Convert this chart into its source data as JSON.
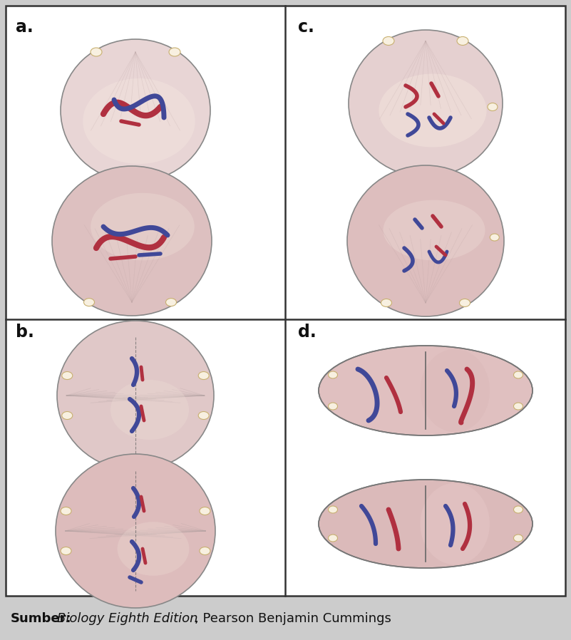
{
  "bg_color": "#cccccc",
  "panel_bg": "#f0f0f0",
  "cell_light": "#e8d0d0",
  "cell_medium": "#ddbcbc",
  "cell_dark": "#ccaaaa",
  "border_color": "#444444",
  "labels": [
    "a.",
    "b.",
    "c.",
    "d."
  ],
  "footer_bold": "Sumber:",
  "footer_italic": "Biology Eighth Edition",
  "footer_normal": ", Pearson Benjamin Cummings",
  "footer_fontsize": 13,
  "label_fontsize": 17,
  "chromosome_red": "#b03040",
  "chromosome_blue": "#404898",
  "aster_color": "#d4c090",
  "spindle_color": "#c0a8a8",
  "aster_dot_fill": "#f8f0e0",
  "aster_dot_edge": "#c8b070",
  "watermark_color": "#aaaaaa",
  "panel_border": "#333333"
}
